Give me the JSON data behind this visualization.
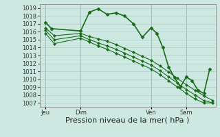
{
  "background_color": "#cce8e0",
  "grid_color": "#aacccc",
  "line_color": "#1a6b1a",
  "ylabel_ticks": [
    1007,
    1008,
    1009,
    1010,
    1011,
    1012,
    1013,
    1014,
    1015,
    1016,
    1017,
    1018,
    1019
  ],
  "ylim": [
    1006.5,
    1019.5
  ],
  "xlabel": "Pression niveau de la mer( hPa )",
  "xlabel_fontsize": 8,
  "tick_fontsize": 6,
  "day_labels": [
    "Jeu",
    "Dim",
    "Ven",
    "Sam"
  ],
  "day_positions": [
    2,
    14,
    38,
    50
  ],
  "vline_positions": [
    2,
    14,
    38,
    50
  ],
  "xlim": [
    0,
    60
  ],
  "series": [
    {
      "x": [
        2,
        4,
        14,
        17,
        20,
        23,
        26,
        29,
        32,
        35,
        38,
        40,
        42,
        44,
        46,
        48,
        50,
        52,
        54,
        56,
        58
      ],
      "y": [
        1017.2,
        1016.4,
        1016.1,
        1018.5,
        1018.9,
        1018.2,
        1018.4,
        1018.0,
        1017.0,
        1015.3,
        1016.5,
        1015.8,
        1014.0,
        1011.5,
        1010.2,
        1009.0,
        1010.3,
        1009.8,
        1008.6,
        1008.2,
        1011.3
      ],
      "marker": "D",
      "markersize": 2.5,
      "linewidth": 1.2
    },
    {
      "x": [
        2,
        5,
        14,
        17,
        20,
        23,
        26,
        29,
        32,
        35,
        38,
        41,
        44,
        47,
        50,
        53,
        56,
        59
      ],
      "y": [
        1016.5,
        1015.5,
        1015.8,
        1015.4,
        1015.1,
        1014.8,
        1014.4,
        1013.9,
        1013.4,
        1012.9,
        1012.4,
        1011.7,
        1010.9,
        1010.1,
        1009.3,
        1008.6,
        1007.9,
        1007.3
      ],
      "marker": "D",
      "markersize": 2.0,
      "linewidth": 0.8
    },
    {
      "x": [
        2,
        5,
        14,
        17,
        20,
        23,
        26,
        29,
        32,
        35,
        38,
        41,
        44,
        47,
        50,
        53,
        56,
        59
      ],
      "y": [
        1016.2,
        1015.0,
        1015.5,
        1015.0,
        1014.6,
        1014.2,
        1013.8,
        1013.3,
        1012.8,
        1012.3,
        1011.8,
        1011.1,
        1010.3,
        1009.5,
        1008.7,
        1008.0,
        1007.3,
        1007.0
      ],
      "marker": "D",
      "markersize": 2.0,
      "linewidth": 0.8
    },
    {
      "x": [
        2,
        5,
        14,
        17,
        20,
        23,
        26,
        29,
        32,
        35,
        38,
        41,
        44,
        47,
        50,
        53,
        56,
        59
      ],
      "y": [
        1015.8,
        1014.5,
        1015.2,
        1014.7,
        1014.2,
        1013.8,
        1013.3,
        1012.8,
        1012.3,
        1011.8,
        1011.3,
        1010.6,
        1009.8,
        1009.0,
        1008.2,
        1007.5,
        1007.0,
        1007.0
      ],
      "marker": "D",
      "markersize": 2.0,
      "linewidth": 0.8
    }
  ]
}
